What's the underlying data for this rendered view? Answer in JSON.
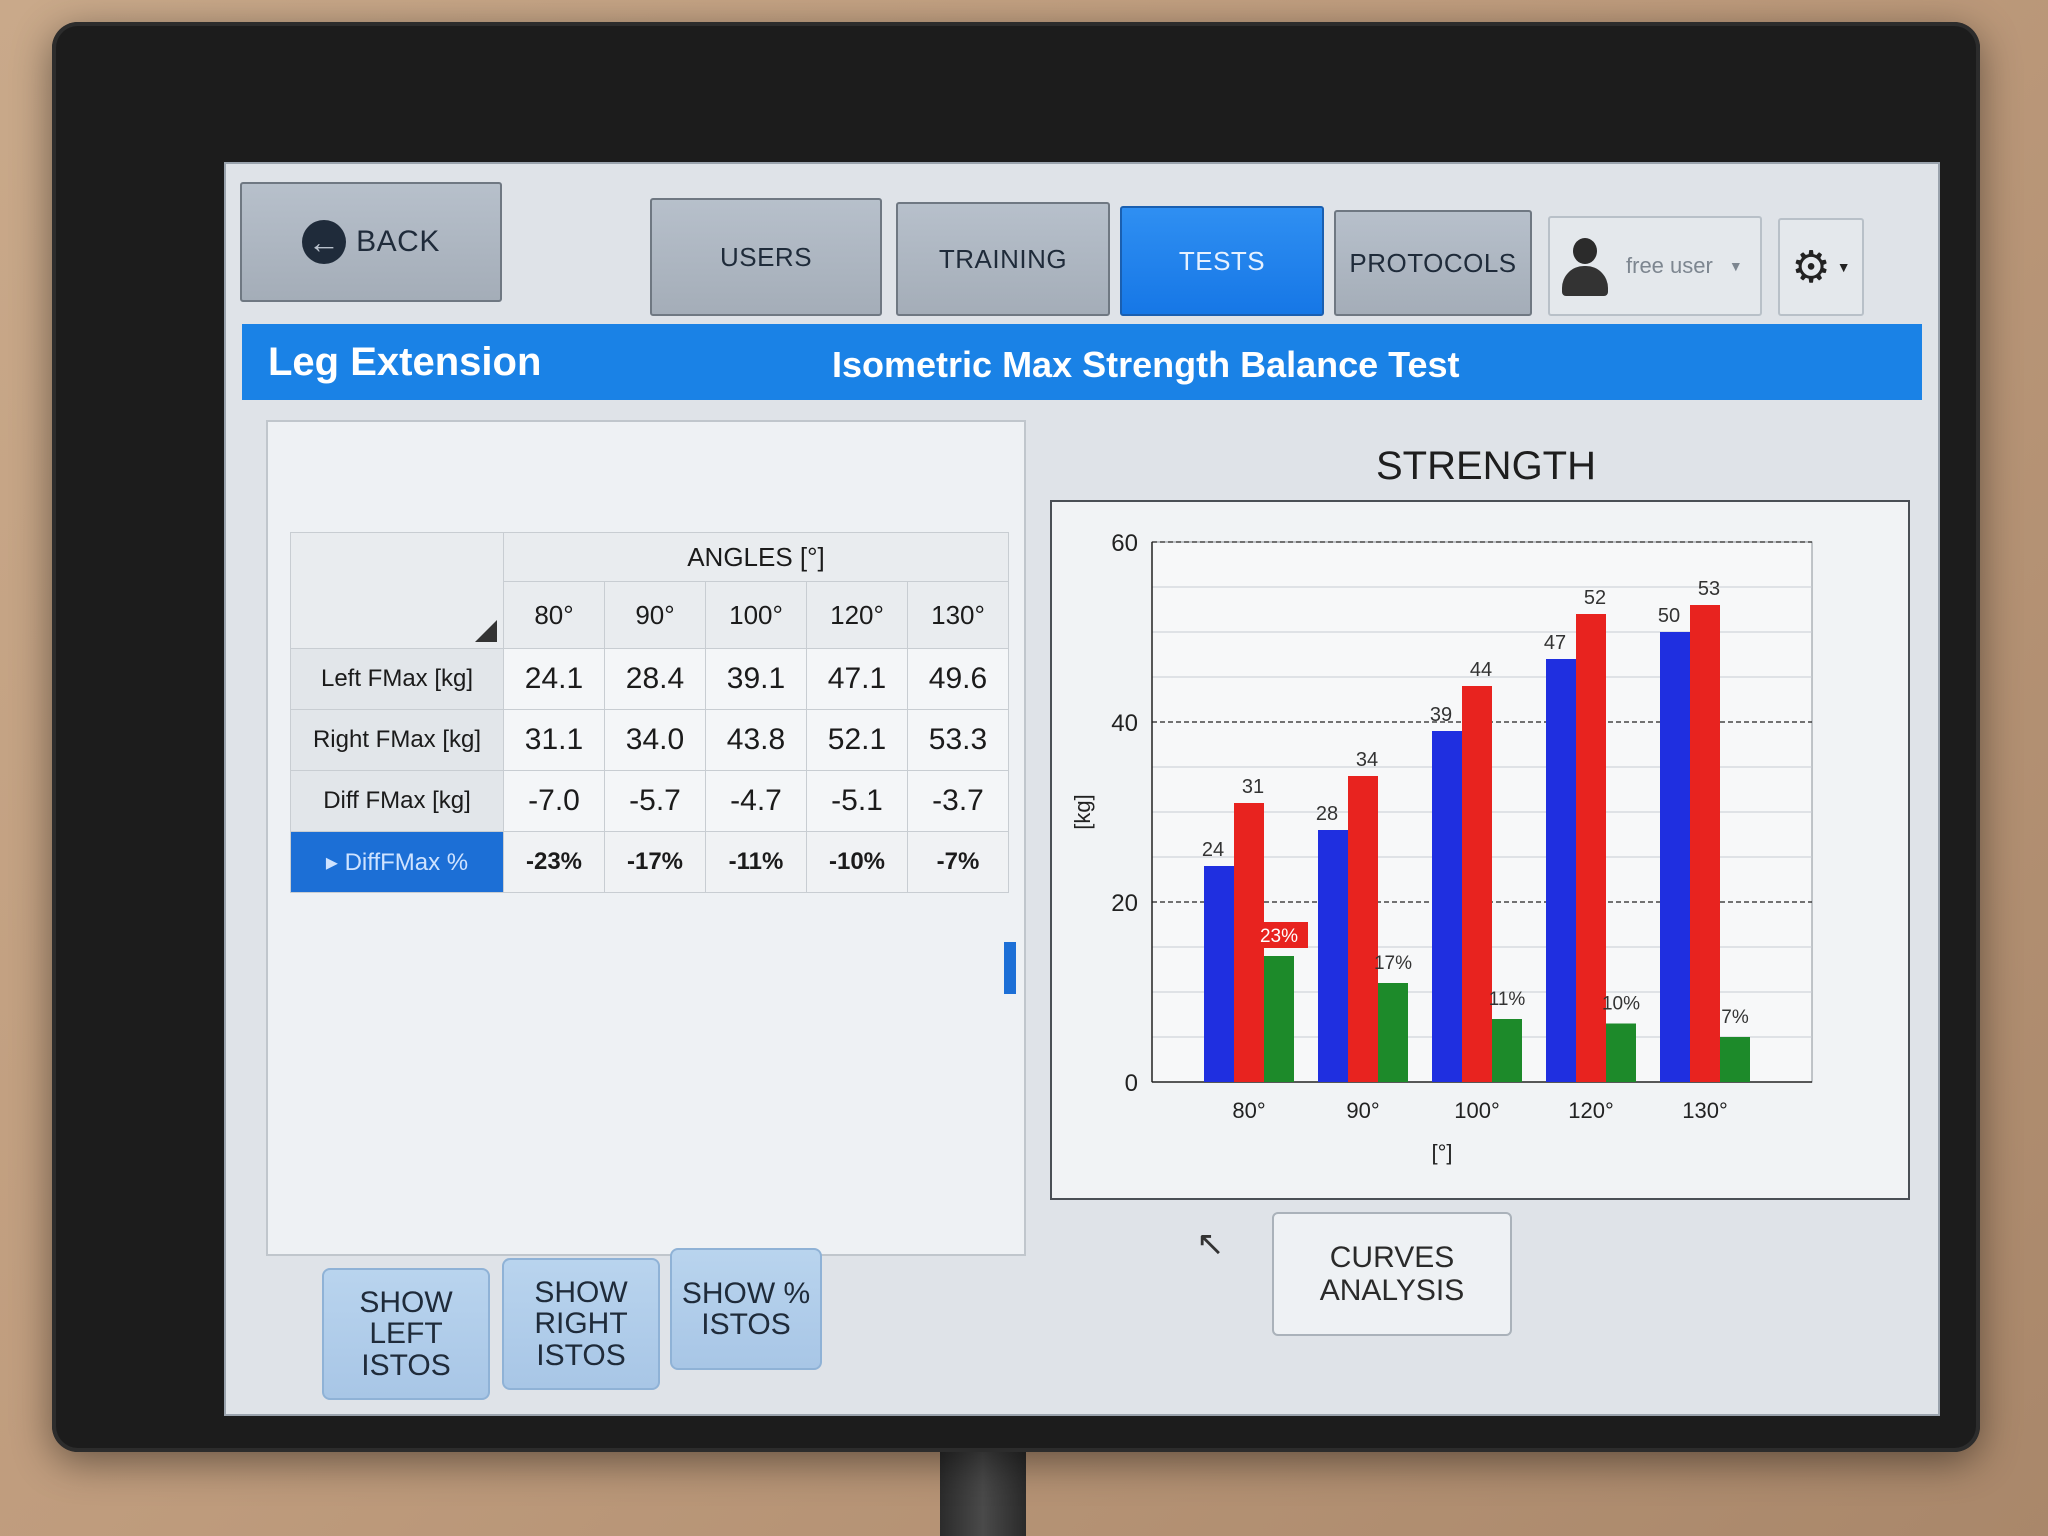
{
  "toolbar": {
    "back_label": "BACK",
    "tabs": [
      {
        "label": "USERS",
        "active": false
      },
      {
        "label": "TRAINING",
        "active": false
      },
      {
        "label": "TESTS",
        "active": true
      },
      {
        "label": "PROTOCOLS",
        "active": false
      }
    ],
    "user_label": "free user",
    "icons": {
      "back": "arrow-left-circle-icon",
      "user": "user-avatar-icon",
      "settings": "gear-icon"
    }
  },
  "title_bar": {
    "exercise": "Leg Extension",
    "test": "Isometric Max Strength Balance Test",
    "color": "#1a82e6"
  },
  "table": {
    "angles_header": "ANGLES [°]",
    "columns": [
      "80°",
      "90°",
      "100°",
      "120°",
      "130°"
    ],
    "rows": [
      {
        "label": "Left FMax [kg]",
        "values": [
          "24.1",
          "28.4",
          "39.1",
          "47.1",
          "49.6"
        ]
      },
      {
        "label": "Right FMax [kg]",
        "values": [
          "31.1",
          "34.0",
          "43.8",
          "52.1",
          "53.3"
        ]
      },
      {
        "label": "Diff FMax [kg]",
        "values": [
          "-7.0",
          "-5.7",
          "-4.7",
          "-5.1",
          "-3.7"
        ]
      },
      {
        "label": "DiffFMax %",
        "values": [
          "-23%",
          "-17%",
          "-11%",
          "-10%",
          "-7%"
        ],
        "selected": true
      }
    ]
  },
  "chart_data": {
    "type": "bar",
    "title": "STRENGTH",
    "xlabel": "[°]",
    "ylabel": "[kg]",
    "ylim": [
      0,
      60
    ],
    "yticks": [
      0,
      20,
      40,
      60
    ],
    "categories": [
      "80°",
      "90°",
      "100°",
      "120°",
      "130°"
    ],
    "series": [
      {
        "color": "#1f2fe0",
        "values": [
          24,
          28,
          39,
          47,
          50
        ],
        "labels": [
          "24",
          "28",
          "39",
          "47",
          "50"
        ]
      },
      {
        "color": "#e8231f",
        "values": [
          31,
          34,
          44,
          52,
          53
        ],
        "labels": [
          "31",
          "34",
          "44",
          "52",
          "53"
        ]
      },
      {
        "color": "#1d8a2a",
        "values": [
          14,
          11,
          7,
          6.5,
          5
        ],
        "labels": [
          "23%",
          "17%",
          "11%",
          "10%",
          "7%"
        ]
      }
    ],
    "grid": true,
    "highlight_label_color": "#e8231f"
  },
  "buttons": {
    "show_left": "SHOW\nLEFT\nISTOS",
    "show_right": "SHOW\nRIGHT\nISTOS",
    "show_pct": "SHOW %\nISTOS",
    "curves": "CURVES\nANALYSIS"
  }
}
